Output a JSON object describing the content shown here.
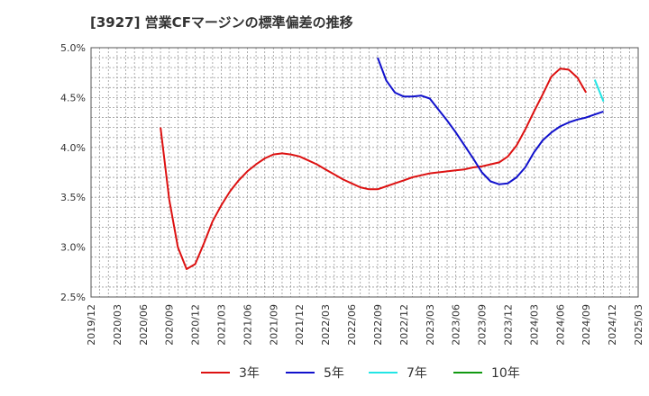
{
  "chart_data": {
    "type": "line",
    "title": "[3927]  営業CFマージンの標準偏差の推移",
    "xlabel": "",
    "ylabel": "",
    "x_ticks": [
      "2019/12",
      "2020/03",
      "2020/06",
      "2020/09",
      "2020/12",
      "2021/03",
      "2021/06",
      "2021/09",
      "2021/12",
      "2022/03",
      "2022/06",
      "2022/09",
      "2022/12",
      "2023/03",
      "2023/06",
      "2023/09",
      "2023/12",
      "2024/03",
      "2024/06",
      "2024/09",
      "2024/12",
      "2025/03"
    ],
    "x_range": [
      0,
      63
    ],
    "y_ticks": [
      "2.5%",
      "3.0%",
      "3.5%",
      "4.0%",
      "4.5%",
      "5.0%"
    ],
    "ylim": [
      2.5,
      5.0
    ],
    "grid": true,
    "series": [
      {
        "name": "3年",
        "color": "#dd1111",
        "x": [
          8,
          9,
          10,
          11,
          12,
          13,
          14,
          15,
          16,
          17,
          18,
          19,
          20,
          21,
          22,
          23,
          24,
          25,
          26,
          27,
          28,
          29,
          30,
          31,
          32,
          33,
          34,
          35,
          36,
          37,
          38,
          39,
          40,
          41,
          42,
          43,
          44,
          45,
          46,
          47,
          48,
          49,
          50,
          51,
          52,
          53,
          54,
          55,
          56,
          57
        ],
        "values": [
          4.2,
          3.48,
          3.0,
          2.78,
          2.83,
          3.04,
          3.26,
          3.42,
          3.56,
          3.67,
          3.76,
          3.83,
          3.89,
          3.93,
          3.94,
          3.93,
          3.91,
          3.87,
          3.83,
          3.78,
          3.73,
          3.68,
          3.64,
          3.6,
          3.58,
          3.58,
          3.61,
          3.64,
          3.67,
          3.7,
          3.72,
          3.74,
          3.75,
          3.76,
          3.77,
          3.78,
          3.8,
          3.81,
          3.83,
          3.85,
          3.91,
          4.02,
          4.18,
          4.36,
          4.53,
          4.71,
          4.79,
          4.78,
          4.7,
          4.55
        ]
      },
      {
        "name": "5年",
        "color": "#1111cc",
        "x": [
          33,
          34,
          35,
          36,
          37,
          38,
          39,
          40,
          41,
          42,
          43,
          44,
          45,
          46,
          47,
          48,
          49,
          50,
          51,
          52,
          53,
          54,
          55,
          56,
          57,
          58,
          59
        ],
        "values": [
          4.9,
          4.67,
          4.55,
          4.51,
          4.51,
          4.52,
          4.49,
          4.38,
          4.27,
          4.15,
          4.02,
          3.89,
          3.75,
          3.66,
          3.63,
          3.64,
          3.7,
          3.8,
          3.95,
          4.07,
          4.15,
          4.21,
          4.25,
          4.28,
          4.3,
          4.33,
          4.36
        ]
      },
      {
        "name": "7年",
        "color": "#22e5e5",
        "x": [
          58,
          59
        ],
        "values": [
          4.68,
          4.46
        ]
      },
      {
        "name": "10年",
        "color": "#119911",
        "x": [],
        "values": []
      }
    ]
  }
}
